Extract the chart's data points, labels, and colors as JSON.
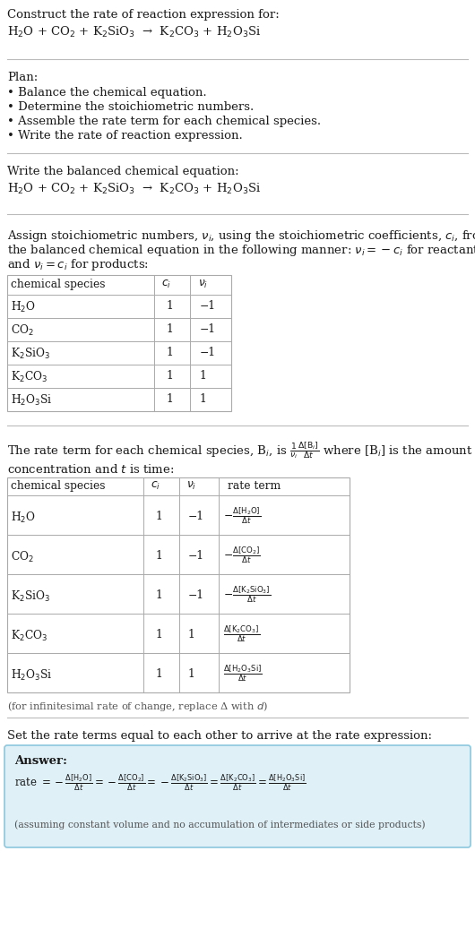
{
  "bg_color": "#ffffff",
  "text_color": "#1a1a1a",
  "title_line1": "Construct the rate of reaction expression for:",
  "reaction_eq": "H$_2$O + CO$_2$ + K$_2$SiO$_3$  →  K$_2$CO$_3$ + H$_2$O$_3$Si",
  "plan_title": "Plan:",
  "plan_items": [
    "• Balance the chemical equation.",
    "• Determine the stoichiometric numbers.",
    "• Assemble the rate term for each chemical species.",
    "• Write the rate of reaction expression."
  ],
  "balanced_label": "Write the balanced chemical equation:",
  "balanced_eq": "H$_2$O + CO$_2$ + K$_2$SiO$_3$  →  K$_2$CO$_3$ + H$_2$O$_3$Si",
  "assign_lines": [
    "Assign stoichiometric numbers, $\\nu_i$, using the stoichiometric coefficients, $c_i$, from",
    "the balanced chemical equation in the following manner: $\\nu_i = -c_i$ for reactants",
    "and $\\nu_i = c_i$ for products:"
  ],
  "table1_headers": [
    "chemical species",
    "$c_i$",
    "$\\nu_i$"
  ],
  "table1_rows": [
    [
      "H$_2$O",
      "1",
      "−1"
    ],
    [
      "CO$_2$",
      "1",
      "−1"
    ],
    [
      "K$_2$SiO$_3$",
      "1",
      "−1"
    ],
    [
      "K$_2$CO$_3$",
      "1",
      "1"
    ],
    [
      "H$_2$O$_3$Si",
      "1",
      "1"
    ]
  ],
  "rate_line1": "The rate term for each chemical species, B$_i$, is $\\frac{1}{\\nu_i}\\frac{\\Delta[\\mathrm{B}_i]}{\\Delta t}$ where [B$_i$] is the amount",
  "rate_line2": "concentration and $t$ is time:",
  "table2_headers": [
    "chemical species",
    "$c_i$",
    "$\\nu_i$",
    "rate term"
  ],
  "table2_rows": [
    [
      "H$_2$O",
      "1",
      "−1",
      "$-\\frac{\\Delta[\\mathrm{H_2O}]}{\\Delta t}$"
    ],
    [
      "CO$_2$",
      "1",
      "−1",
      "$-\\frac{\\Delta[\\mathrm{CO_2}]}{\\Delta t}$"
    ],
    [
      "K$_2$SiO$_3$",
      "1",
      "−1",
      "$-\\frac{\\Delta[\\mathrm{K_2SiO_3}]}{\\Delta t}$"
    ],
    [
      "K$_2$CO$_3$",
      "1",
      "1",
      "$\\frac{\\Delta[\\mathrm{K_2CO_3}]}{\\Delta t}$"
    ],
    [
      "H$_2$O$_3$Si",
      "1",
      "1",
      "$\\frac{\\Delta[\\mathrm{H_2O_3Si}]}{\\Delta t}$"
    ]
  ],
  "infinitesimal_note": "(for infinitesimal rate of change, replace Δ with $d$)",
  "set_rate_text": "Set the rate terms equal to each other to arrive at the rate expression:",
  "answer_label": "Answer:",
  "answer_box_color": "#dff0f7",
  "answer_box_border": "#8cc8de",
  "rate_expression": "rate $= -\\frac{\\Delta[\\mathrm{H_2O}]}{\\Delta t} = -\\frac{\\Delta[\\mathrm{CO_2}]}{\\Delta t} = -\\frac{\\Delta[\\mathrm{K_2SiO_3}]}{\\Delta t} = \\frac{\\Delta[\\mathrm{K_2CO_3}]}{\\Delta t} = \\frac{\\Delta[\\mathrm{H_2O_3Si}]}{\\Delta t}$",
  "assuming_note": "(assuming constant volume and no accumulation of intermediates or side products)"
}
